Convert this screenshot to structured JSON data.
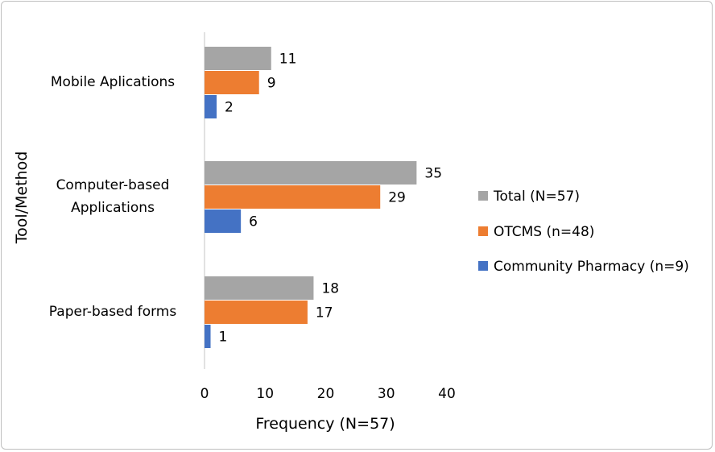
{
  "chart_data": {
    "type": "bar",
    "orientation": "horizontal",
    "categories": [
      "Mobile Aplications",
      "Computer-based Applications",
      "Paper-based forms"
    ],
    "category_lines": [
      [
        "Mobile Aplications"
      ],
      [
        "Computer-based",
        "Applications"
      ],
      [
        "Paper-based forms"
      ]
    ],
    "series": [
      {
        "name": "Total (N=57)",
        "color": "#a5a5a5",
        "values": [
          11,
          35,
          18
        ]
      },
      {
        "name": "OTCMS (n=48)",
        "color": "#ed7d31",
        "values": [
          9,
          29,
          17
        ]
      },
      {
        "name": "Community Pharmacy (n=9)",
        "color": "#4472c4",
        "values": [
          2,
          6,
          1
        ]
      }
    ],
    "xlabel": "Frequency (N=57)",
    "ylabel": "Tool/Method",
    "xlim": [
      0,
      40
    ],
    "xticks": [
      "0",
      "10",
      "20",
      "30",
      "40"
    ],
    "grid": false,
    "data_labels": true,
    "legend_position": "right"
  }
}
